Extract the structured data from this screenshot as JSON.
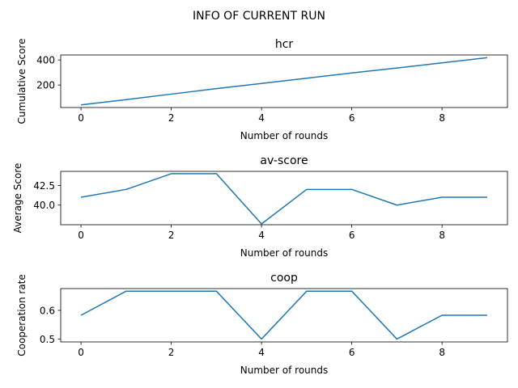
{
  "figure": {
    "title": "INFO OF CURRENT RUN",
    "line_color": "#1f77b4"
  },
  "chart_data": [
    {
      "type": "line",
      "title": "hcr",
      "xlabel": "Number of rounds",
      "ylabel": "Cumulative Score",
      "xlim": [
        -0.45,
        9.45
      ],
      "ylim": [
        20,
        440
      ],
      "xticks": [
        0,
        2,
        4,
        6,
        8
      ],
      "yticks": [
        200,
        400
      ],
      "ytick_labels": [
        "200",
        "400"
      ],
      "grid": false,
      "x": [
        0,
        1,
        2,
        3,
        4,
        5,
        6,
        7,
        8,
        9
      ],
      "series": [
        {
          "values": [
            41,
            83,
            127,
            171,
            212,
            254,
            296,
            336,
            377,
            418
          ]
        }
      ]
    },
    {
      "type": "line",
      "title": "av-score",
      "xlabel": "Number of rounds",
      "ylabel": "Average Score",
      "xlim": [
        -0.45,
        9.45
      ],
      "ylim": [
        37.5,
        44.3
      ],
      "xticks": [
        0,
        2,
        4,
        6,
        8
      ],
      "yticks": [
        40.0,
        42.5
      ],
      "ytick_labels": [
        "40.0",
        "42.5"
      ],
      "grid": false,
      "x": [
        0,
        1,
        2,
        3,
        4,
        5,
        6,
        7,
        8,
        9
      ],
      "series": [
        {
          "values": [
            41.0,
            42.0,
            44.0,
            44.0,
            37.6,
            42.0,
            42.0,
            40.0,
            41.0,
            41.0
          ]
        }
      ]
    },
    {
      "type": "line",
      "title": "coop",
      "xlabel": "Number of rounds",
      "ylabel": "Cooperation rate",
      "xlim": [
        -0.45,
        9.45
      ],
      "ylim": [
        0.49,
        0.676
      ],
      "xticks": [
        0,
        2,
        4,
        6,
        8
      ],
      "yticks": [
        0.5,
        0.6
      ],
      "ytick_labels": [
        "0.5",
        "0.6"
      ],
      "grid": false,
      "x": [
        0,
        1,
        2,
        3,
        4,
        5,
        6,
        7,
        8,
        9
      ],
      "series": [
        {
          "values": [
            0.583,
            0.667,
            0.667,
            0.667,
            0.5,
            0.667,
            0.667,
            0.5,
            0.583,
            0.583
          ]
        }
      ]
    }
  ]
}
